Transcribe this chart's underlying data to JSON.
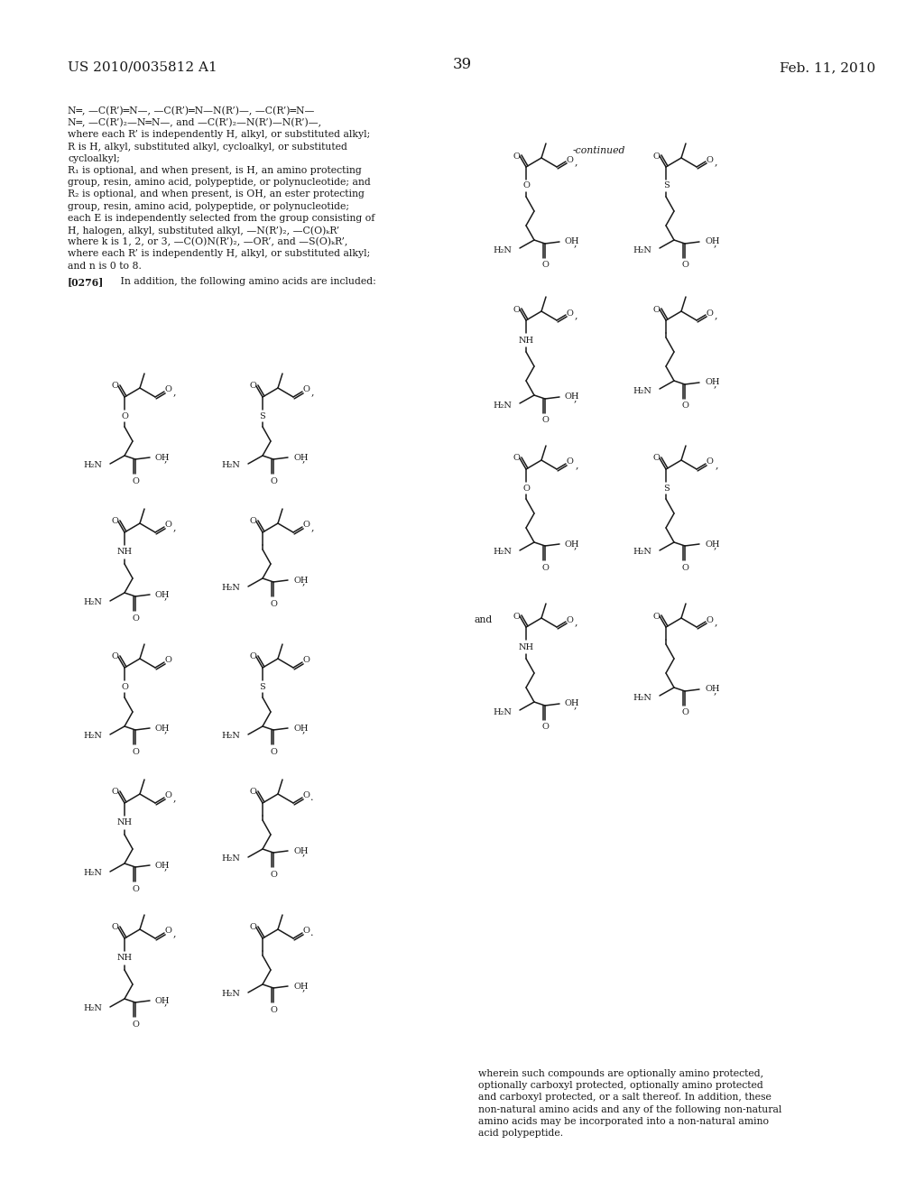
{
  "page_number": "39",
  "patent_number": "US 2010/0035812 A1",
  "date": "Feb. 11, 2010",
  "background_color": "#ffffff",
  "text_color": "#1a1a1a",
  "continued_label": "-continued",
  "footer_text": "wherein such compounds are optionally amino protected,\noptionally carboxyl protected, optionally amino protected\nand carboxyl protected, or a salt thereof. In addition, these\nnon-natural amino acids and any of the following non-natural\namino acids may be incorporated into a non-natural amino\nacid polypeptide.",
  "lines_text": [
    "N═, —C(R’)═N—, —C(R’)═N—N(R’)—, —C(R’)═N—",
    "N═, —C(R’)₂—N═N—, and —C(R’)₂—N(R’)—N(R’)—,",
    "where each R’ is independently H, alkyl, or substituted alkyl;",
    "R is H, alkyl, substituted alkyl, cycloalkyl, or substituted",
    "cycloalkyl;",
    "R₁ is optional, and when present, is H, an amino protecting",
    "group, resin, amino acid, polypeptide, or polynucleotide; and",
    "R₂ is optional, and when present, is OH, an ester protecting",
    "group, resin, amino acid, polypeptide, or polynucleotide;",
    "each E is independently selected from the group consisting of",
    "H, halogen, alkyl, substituted alkyl, —N(R’)₂, —C(O)ₖR’",
    "where k is 1, 2, or 3, —C(O)N(R’)₂, —OR’, and —S(O)ₖR’,",
    "where each R’ is independently H, alkyl, or substituted alkyl;",
    "and n is 0 to 8."
  ]
}
